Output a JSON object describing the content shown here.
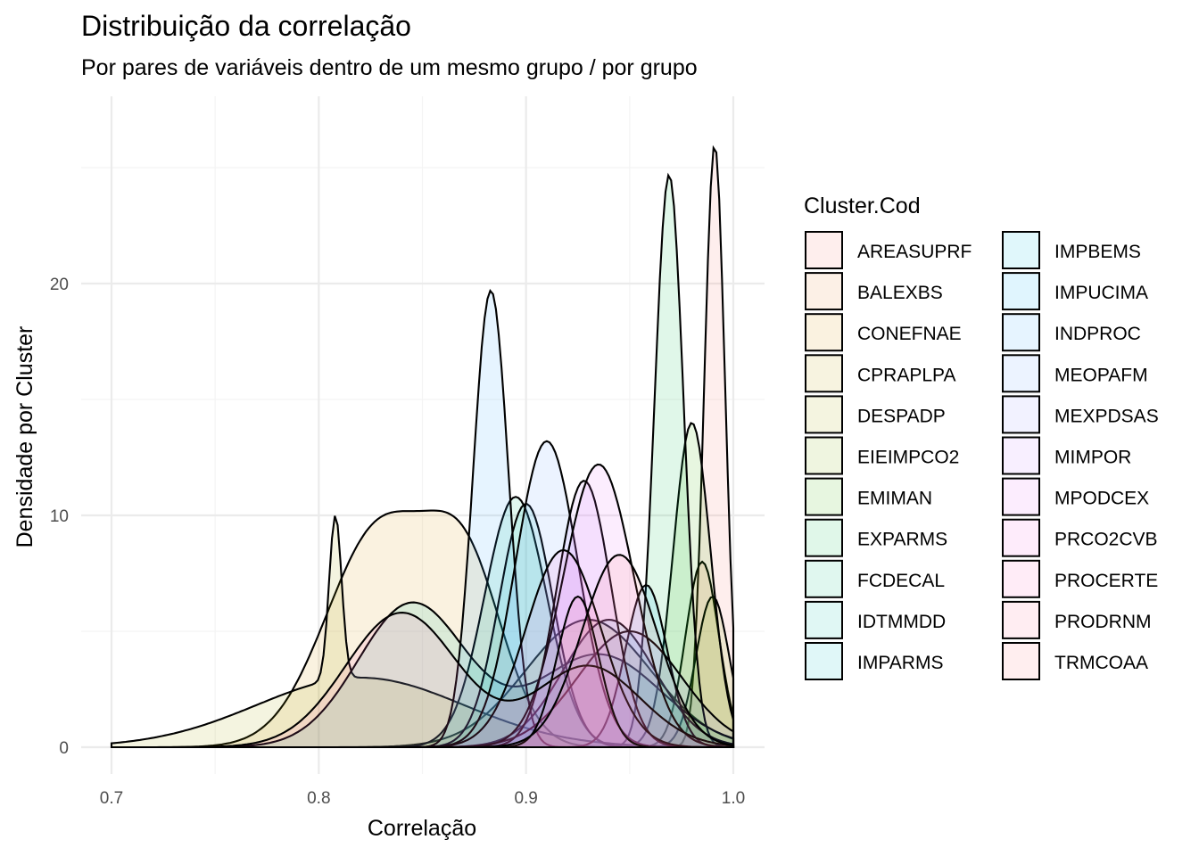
{
  "chart_data": {
    "type": "area",
    "title": "Distribuição da correlação",
    "subtitle": "Por pares de variáveis dentro de um mesmo grupo / por grupo",
    "xlabel": "Correlação",
    "ylabel": "Densidade por Cluster",
    "xlim": [
      0.7,
      1.0
    ],
    "ylim": [
      0,
      26.7
    ],
    "x_ticks": [
      "0.7",
      "0.8",
      "0.9",
      "1.0"
    ],
    "y_ticks": [
      "0",
      "10",
      "20"
    ],
    "grid": true,
    "legend_title": "Cluster.Cod",
    "legend_position": "right",
    "series": [
      {
        "name": "AREASUPRF",
        "color": "#F8766D",
        "peaks": [
          [
            0.991,
            26.0,
            0.005
          ]
        ]
      },
      {
        "name": "BALEXBS",
        "color": "#EA8331",
        "peaks": [
          [
            0.985,
            8.0,
            0.008
          ]
        ]
      },
      {
        "name": "CONEFNAE",
        "color": "#D89000",
        "peaks": [
          [
            0.83,
            9.5,
            0.026
          ],
          [
            0.872,
            6.6,
            0.018
          ]
        ]
      },
      {
        "name": "CPRAPLPA",
        "color": "#C09B00",
        "peaks": [
          [
            0.93,
            5.5,
            0.03
          ]
        ]
      },
      {
        "name": "DESPADP",
        "color": "#A3A500",
        "peaks": [
          [
            0.808,
            7.1,
            0.003
          ],
          [
            0.82,
            3.0,
            0.05
          ]
        ]
      },
      {
        "name": "EIEIMPCO2",
        "color": "#7CAE00",
        "peaks": [
          [
            0.99,
            6.5,
            0.008
          ]
        ]
      },
      {
        "name": "EMIMAN",
        "color": "#39B600",
        "peaks": [
          [
            0.98,
            14.0,
            0.009
          ]
        ]
      },
      {
        "name": "EXPARMS",
        "color": "#00BB4E",
        "peaks": [
          [
            0.969,
            24.7,
            0.007
          ]
        ]
      },
      {
        "name": "FCDECAL",
        "color": "#00BF7D",
        "peaks": [
          [
            0.895,
            10.8,
            0.015
          ]
        ]
      },
      {
        "name": "IDTMMDD",
        "color": "#00C1A3",
        "peaks": [
          [
            0.845,
            6.2,
            0.026
          ],
          [
            0.935,
            4.0,
            0.03
          ]
        ]
      },
      {
        "name": "IMPARMS",
        "color": "#00BFC4",
        "peaks": [
          [
            0.9,
            10.5,
            0.013
          ]
        ]
      },
      {
        "name": "IMPBEMS",
        "color": "#00BAE0",
        "peaks": [
          [
            0.94,
            5.5,
            0.022
          ]
        ]
      },
      {
        "name": "IMPUCIMA",
        "color": "#00B0F6",
        "peaks": [
          [
            0.958,
            7.0,
            0.01
          ]
        ]
      },
      {
        "name": "INDPROC",
        "color": "#35A2FF",
        "peaks": [
          [
            0.883,
            19.7,
            0.0085
          ]
        ]
      },
      {
        "name": "MEOPAFM",
        "color": "#619CFF",
        "peaks": [
          [
            0.91,
            13.2,
            0.015
          ]
        ]
      },
      {
        "name": "MEXPDSAS",
        "color": "#9590FF",
        "peaks": [
          [
            0.95,
            5.0,
            0.025
          ]
        ]
      },
      {
        "name": "MIMPOR",
        "color": "#C77CFF",
        "peaks": [
          [
            0.928,
            11.5,
            0.013
          ]
        ]
      },
      {
        "name": "MPODCEX",
        "color": "#E76BF3",
        "peaks": [
          [
            0.935,
            12.2,
            0.017
          ]
        ]
      },
      {
        "name": "PRCO2CVB",
        "color": "#FA62DB",
        "peaks": [
          [
            0.918,
            8.5,
            0.018
          ]
        ]
      },
      {
        "name": "PROCERTE",
        "color": "#FF62BC",
        "peaks": [
          [
            0.84,
            5.8,
            0.027
          ],
          [
            0.93,
            3.5,
            0.025
          ]
        ]
      },
      {
        "name": "PRODRNM",
        "color": "#FF6C91",
        "peaks": [
          [
            0.925,
            6.5,
            0.01
          ]
        ]
      },
      {
        "name": "TRMCOAA",
        "color": "#FC717F",
        "peaks": [
          [
            0.945,
            8.3,
            0.018
          ]
        ]
      }
    ]
  }
}
